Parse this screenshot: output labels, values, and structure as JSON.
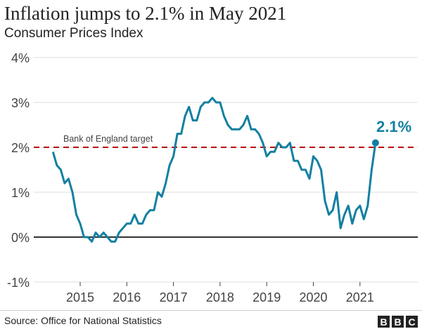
{
  "title": "Inflation jumps to 2.1% in May 2021",
  "subtitle": "Consumer Prices Index",
  "source": "Source: Office for National Statistics",
  "logo": "BBC",
  "chart_data": {
    "type": "line",
    "title": "Inflation jumps to 2.1% in May 2021",
    "subtitle": "Consumer Prices Index",
    "xlabel": "",
    "ylabel": "",
    "ylim": [
      -1,
      4
    ],
    "y_ticks": [
      "4%",
      "3%",
      "2%",
      "1%",
      "0%",
      "-1%"
    ],
    "y_tick_values": [
      4,
      3,
      2,
      1,
      0,
      -1
    ],
    "x_ticks": [
      "2015",
      "2016",
      "2017",
      "2018",
      "2019",
      "2020",
      "2021"
    ],
    "grid": true,
    "start": "2014-06",
    "frequency": "monthly",
    "color": "#1380a1",
    "values": [
      1.9,
      1.6,
      1.5,
      1.2,
      1.3,
      1.0,
      0.5,
      0.3,
      0.0,
      0.0,
      -0.1,
      0.1,
      0.0,
      0.1,
      0.0,
      -0.1,
      -0.1,
      0.1,
      0.2,
      0.3,
      0.3,
      0.5,
      0.3,
      0.3,
      0.5,
      0.6,
      0.6,
      1.0,
      0.9,
      1.2,
      1.6,
      1.8,
      2.3,
      2.3,
      2.7,
      2.9,
      2.6,
      2.6,
      2.9,
      3.0,
      3.0,
      3.1,
      3.0,
      3.0,
      2.7,
      2.5,
      2.4,
      2.4,
      2.4,
      2.5,
      2.7,
      2.4,
      2.4,
      2.3,
      2.1,
      1.8,
      1.9,
      1.9,
      2.1,
      2.0,
      2.0,
      2.1,
      1.7,
      1.7,
      1.5,
      1.5,
      1.3,
      1.8,
      1.7,
      1.5,
      0.8,
      0.5,
      0.6,
      1.0,
      0.2,
      0.5,
      0.7,
      0.3,
      0.6,
      0.7,
      0.4,
      0.7,
      1.5,
      2.1
    ],
    "target": {
      "value": 2,
      "label": "Bank of England target",
      "color": "#b80000"
    },
    "annotation": {
      "label": "2.1%",
      "value": 2.1
    }
  }
}
